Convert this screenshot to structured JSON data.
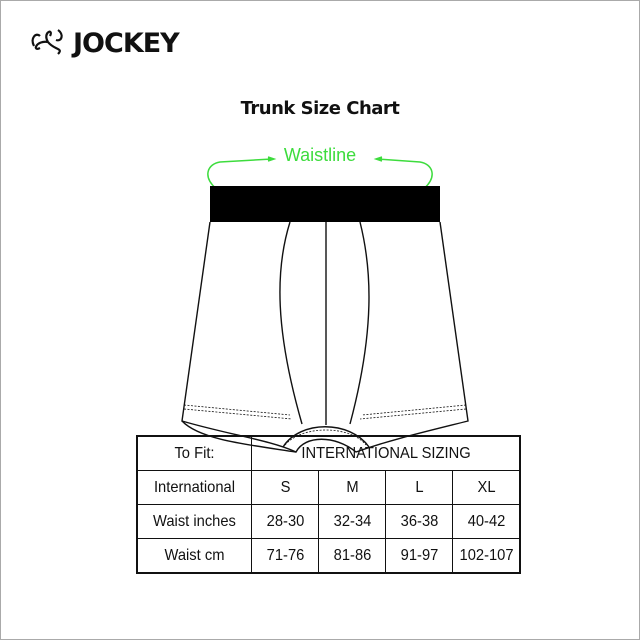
{
  "brand": {
    "name": "JOCKEY",
    "logo_icon": "jockey-swirl-logo"
  },
  "title": "Trunk Size Chart",
  "diagram": {
    "label": "Waistline",
    "accent_color": "#3ddc3d"
  },
  "table": {
    "header": {
      "label": "To Fit:",
      "group": "INTERNATIONAL SIZING"
    },
    "rows": [
      {
        "label": "International",
        "values": [
          "S",
          "M",
          "L",
          "XL"
        ]
      },
      {
        "label": "Waist inches",
        "values": [
          "28-30",
          "32-34",
          "36-38",
          "40-42"
        ]
      },
      {
        "label": "Waist cm",
        "values": [
          "71-76",
          "81-86",
          "91-97",
          "102-107"
        ]
      }
    ]
  }
}
